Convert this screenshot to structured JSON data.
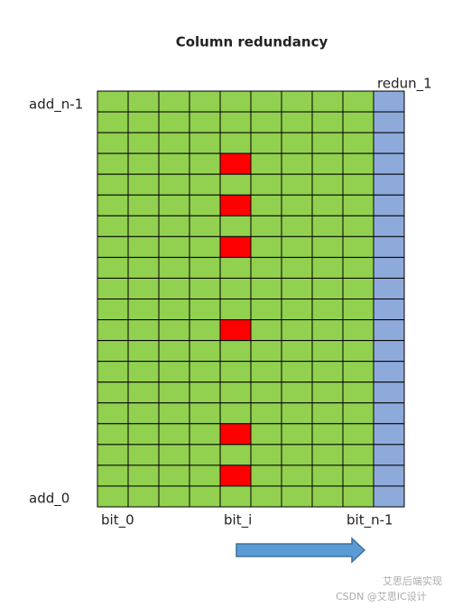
{
  "title": "Column redundancy",
  "labels": {
    "redundant_column": "redun_1",
    "top_address": "add_n-1",
    "bottom_address": "add_0",
    "first_bit": "bit_0",
    "middle_bit": "bit_i",
    "last_bit": "bit_n-1"
  },
  "watermark": {
    "line1": "艾思后端实现",
    "line2": "CSDN @艾思IC设计"
  }
}
